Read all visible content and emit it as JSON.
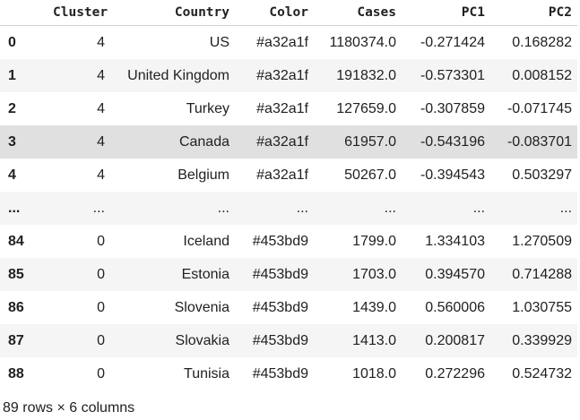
{
  "table": {
    "columns": [
      "",
      "Cluster",
      "Country",
      "Color",
      "Cases",
      "PC1",
      "PC2"
    ],
    "rows": [
      {
        "index": "0",
        "cells": [
          "4",
          "US",
          "#a32a1f",
          "1180374.0",
          "-0.271424",
          "0.168282"
        ]
      },
      {
        "index": "1",
        "cells": [
          "4",
          "United Kingdom",
          "#a32a1f",
          "191832.0",
          "-0.573301",
          "0.008152"
        ]
      },
      {
        "index": "2",
        "cells": [
          "4",
          "Turkey",
          "#a32a1f",
          "127659.0",
          "-0.307859",
          "-0.071745"
        ]
      },
      {
        "index": "3",
        "cells": [
          "4",
          "Canada",
          "#a32a1f",
          "61957.0",
          "-0.543196",
          "-0.083701"
        ],
        "highlighted": true
      },
      {
        "index": "4",
        "cells": [
          "4",
          "Belgium",
          "#a32a1f",
          "50267.0",
          "-0.394543",
          "0.503297"
        ]
      },
      {
        "index": "...",
        "cells": [
          "...",
          "...",
          "...",
          "...",
          "...",
          "..."
        ]
      },
      {
        "index": "84",
        "cells": [
          "0",
          "Iceland",
          "#453bd9",
          "1799.0",
          "1.334103",
          "1.270509"
        ]
      },
      {
        "index": "85",
        "cells": [
          "0",
          "Estonia",
          "#453bd9",
          "1703.0",
          "0.394570",
          "0.714288"
        ]
      },
      {
        "index": "86",
        "cells": [
          "0",
          "Slovenia",
          "#453bd9",
          "1439.0",
          "0.560006",
          "1.030755"
        ]
      },
      {
        "index": "87",
        "cells": [
          "0",
          "Slovakia",
          "#453bd9",
          "1413.0",
          "0.200817",
          "0.339929"
        ]
      },
      {
        "index": "88",
        "cells": [
          "0",
          "Tunisia",
          "#453bd9",
          "1018.0",
          "0.272296",
          "0.524732"
        ]
      }
    ]
  },
  "footer": "89 rows × 6 columns"
}
